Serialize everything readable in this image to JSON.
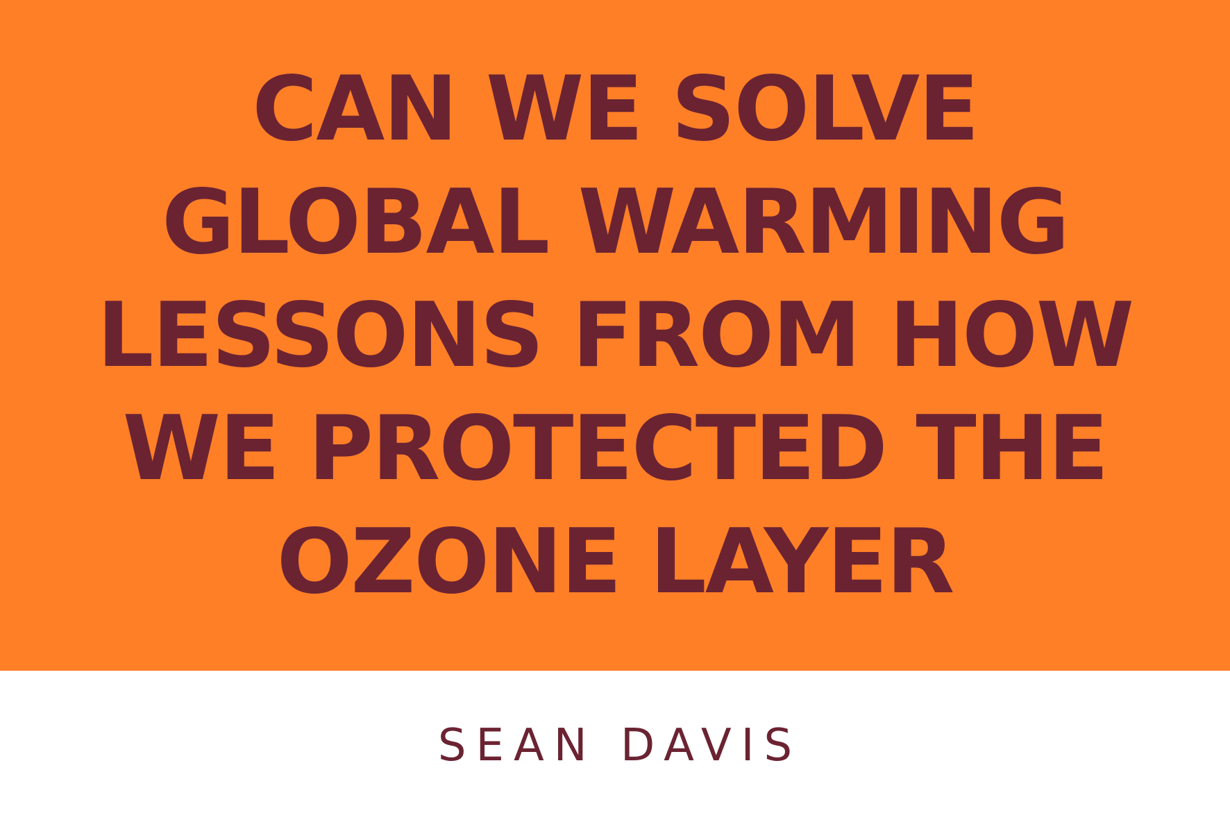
{
  "cover": {
    "title_lines": [
      "CAN WE SOLVE",
      "GLOBAL WARMING",
      "LESSONS FROM HOW",
      "WE PROTECTED THE",
      "OZONE LAYER"
    ],
    "author": "SEAN DAVIS"
  },
  "colors": {
    "panel_background": "#FF7F27",
    "text": "#6B2332",
    "page_background": "#FFFFFF"
  }
}
